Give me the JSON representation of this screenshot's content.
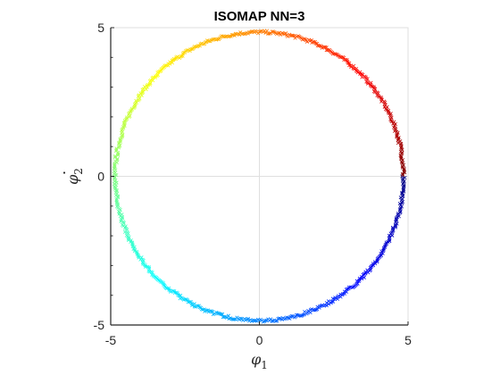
{
  "chart_data": {
    "type": "scatter",
    "title": "ISOMAP NN=3",
    "xlabel": {
      "symbol": "φ",
      "subscript": "1"
    },
    "ylabel": {
      "symbol": "φ",
      "subscript": "2"
    },
    "xlim": [
      -5,
      5
    ],
    "ylim": [
      -5,
      5
    ],
    "xticks": [
      -5,
      0,
      5
    ],
    "yticks": [
      -5,
      0,
      5
    ],
    "xtick_labels": [
      "-5",
      "0",
      "5"
    ],
    "ytick_labels": [
      "-5",
      "0",
      "5"
    ],
    "grid": true,
    "box": true,
    "marker": "x",
    "colormap": "jet",
    "color_varies_with": "angle",
    "colors": {
      "axis": "#262626",
      "grid": "#dfdfdf",
      "background": "#ffffff"
    },
    "points": {
      "shape": "circle",
      "center": [
        0,
        0
      ],
      "radius": 4.85,
      "count": 720,
      "radial_noise": 0.05
    }
  }
}
